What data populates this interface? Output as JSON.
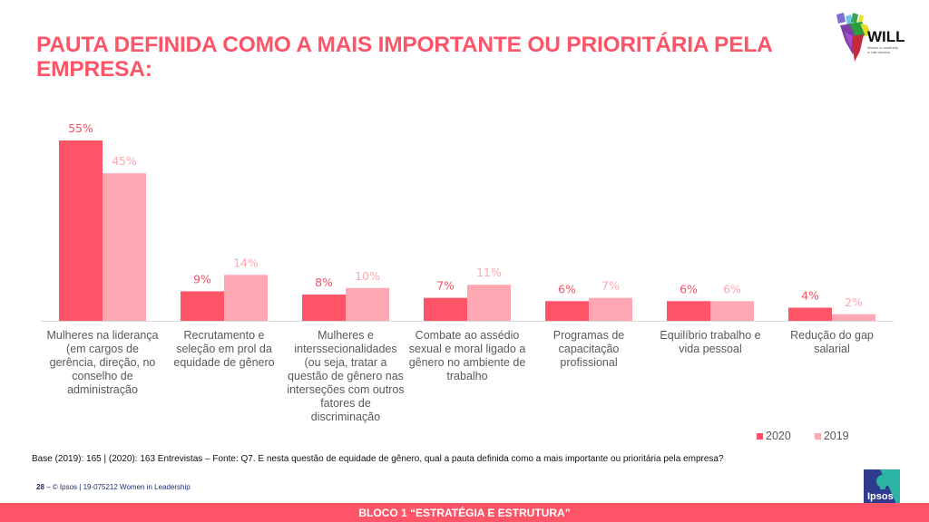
{
  "header": {
    "title": "PAUTA DEFINIDA COMO A MAIS IMPORTANTE OU PRIORITÁRIA PELA EMPRESA:",
    "logo_text": "WILL",
    "logo_subtitle": "Women in Leadership in Latin America"
  },
  "chart_data": {
    "type": "bar",
    "title": "PAUTA DEFINIDA COMO A MAIS IMPORTANTE OU PRIORITÁRIA PELA EMPRESA:",
    "xlabel": "",
    "ylabel": "",
    "ylim": [
      0,
      60
    ],
    "grid": false,
    "legend_position": "bottom-right",
    "categories": [
      "Mulheres na liderança (em cargos de gerência, direção, no conselho de administração",
      "Recrutamento e seleção em prol da equidade de gênero",
      "Mulheres e interssecionalidades (ou seja, tratar a questão de gênero nas interseções com outros fatores de discriminação",
      "Combate ao assédio sexual e moral ligado a gênero no ambiente de trabalho",
      "Programas de capacitação profissional",
      "Equilíbrio trabalho e vida pessoal",
      "Redução do gap salarial"
    ],
    "series": [
      {
        "name": "2020",
        "color": "#fd5467",
        "label_color": "#f25265",
        "values": [
          55,
          9,
          8,
          7,
          6,
          6,
          4
        ],
        "labels": [
          "55%",
          "9%",
          "8%",
          "7%",
          "6%",
          "6%",
          "4%"
        ]
      },
      {
        "name": "2019",
        "color": "#fda8b2",
        "label_color": "#fda8b2",
        "values": [
          45,
          14,
          10,
          11,
          7,
          6,
          2
        ],
        "labels": [
          "45%",
          "14%",
          "10%",
          "11%",
          "7%",
          "6%",
          "2%"
        ]
      }
    ]
  },
  "legend": [
    {
      "label": "2020",
      "color": "#fd5467"
    },
    {
      "label": "2019",
      "color": "#fda8b2"
    }
  ],
  "footnote": {
    "base": "Base (2019): 165 | (2020): 163 Entrevistas – Fonte: Q7. E nesta questão de equidade de gênero, qual a pauta definida como a mais importante ou prioritária pela empresa?"
  },
  "footer": {
    "page_number": "28",
    "reference": "– © Ipsos | 19-075212 Women in Leadership",
    "section": "BLOCO 1 “ESTRATÉGIA E ESTRUTURA”",
    "ipsos_logo_text": "Ipsos"
  },
  "colors": {
    "accent": "#fd5467",
    "series_2020": "#fd5467",
    "series_2019": "#fda8b2",
    "footer_text": "#1f2d6b"
  }
}
